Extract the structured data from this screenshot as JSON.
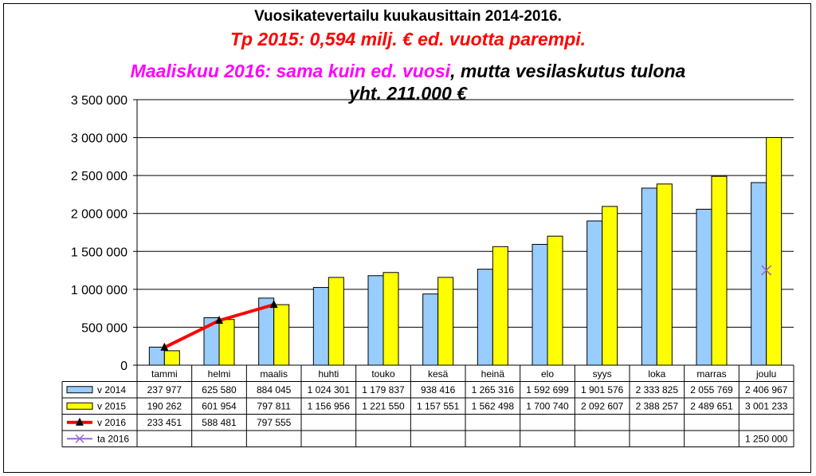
{
  "chart_data": {
    "type": "bar",
    "title": "Vuosikatevertailu kuukausittain 2014-2016.",
    "subtitle_1": "Tp 2015: 0,594 milj. € ed. vuotta parempi.",
    "subtitle_2_a": "Maaliskuu 2016: sama kuin ed. vuosi",
    "subtitle_2_b": ", mutta vesilaskutus tulona",
    "subtitle_3": "yht. 211.000 €",
    "categories": [
      "tammi",
      "helmi",
      "maalis",
      "huhti",
      "touko",
      "kesä",
      "heinä",
      "elo",
      "syys",
      "loka",
      "marras",
      "joulu"
    ],
    "ylim": [
      0,
      3500000
    ],
    "yticks": [
      0,
      500000,
      1000000,
      1500000,
      2000000,
      2500000,
      3000000,
      3500000
    ],
    "ytick_labels": [
      "0",
      "500 000",
      "1 000 000",
      "1 500 000",
      "2 000 000",
      "2 500 000",
      "3 000 000",
      "3 500 000"
    ],
    "grid": true,
    "legend": "data-table",
    "series": [
      {
        "name": "v 2014",
        "type": "bar",
        "color": "#99ccff",
        "values": [
          237977,
          625580,
          884045,
          1024301,
          1179837,
          938416,
          1265316,
          1592699,
          1901576,
          2333825,
          2055769,
          2406967
        ],
        "labels": [
          "237 977",
          "625 580",
          "884 045",
          "1 024 301",
          "1 179 837",
          "938 416",
          "1 265 316",
          "1 592 699",
          "1 901 576",
          "2 333 825",
          "2 055 769",
          "2 406 967"
        ]
      },
      {
        "name": "v 2015",
        "type": "bar",
        "color": "#ffff00",
        "values": [
          190262,
          601954,
          797811,
          1156956,
          1221550,
          1157551,
          1562498,
          1700740,
          2092607,
          2388257,
          2489651,
          3001233
        ],
        "labels": [
          "190 262",
          "601 954",
          "797 811",
          "1 156 956",
          "1 221 550",
          "1 157 551",
          "1 562 498",
          "1 700 740",
          "2 092 607",
          "2 388 257",
          "2 489 651",
          "3 001 233"
        ]
      },
      {
        "name": "v 2016",
        "type": "line",
        "color": "#ff0000",
        "marker": "triangle",
        "values": [
          233451,
          588481,
          797555,
          null,
          null,
          null,
          null,
          null,
          null,
          null,
          null,
          null
        ],
        "labels": [
          "233 451",
          "588 481",
          "797 555",
          "",
          "",
          "",
          "",
          "",
          "",
          "",
          "",
          ""
        ]
      },
      {
        "name": "ta 2016",
        "type": "marker",
        "color": "#9966cc",
        "marker": "x",
        "values": [
          null,
          null,
          null,
          null,
          null,
          null,
          null,
          null,
          null,
          null,
          null,
          1250000
        ],
        "labels": [
          "",
          "",
          "",
          "",
          "",
          "",
          "",
          "",
          "",
          "",
          "",
          "1 250 000"
        ]
      }
    ]
  }
}
